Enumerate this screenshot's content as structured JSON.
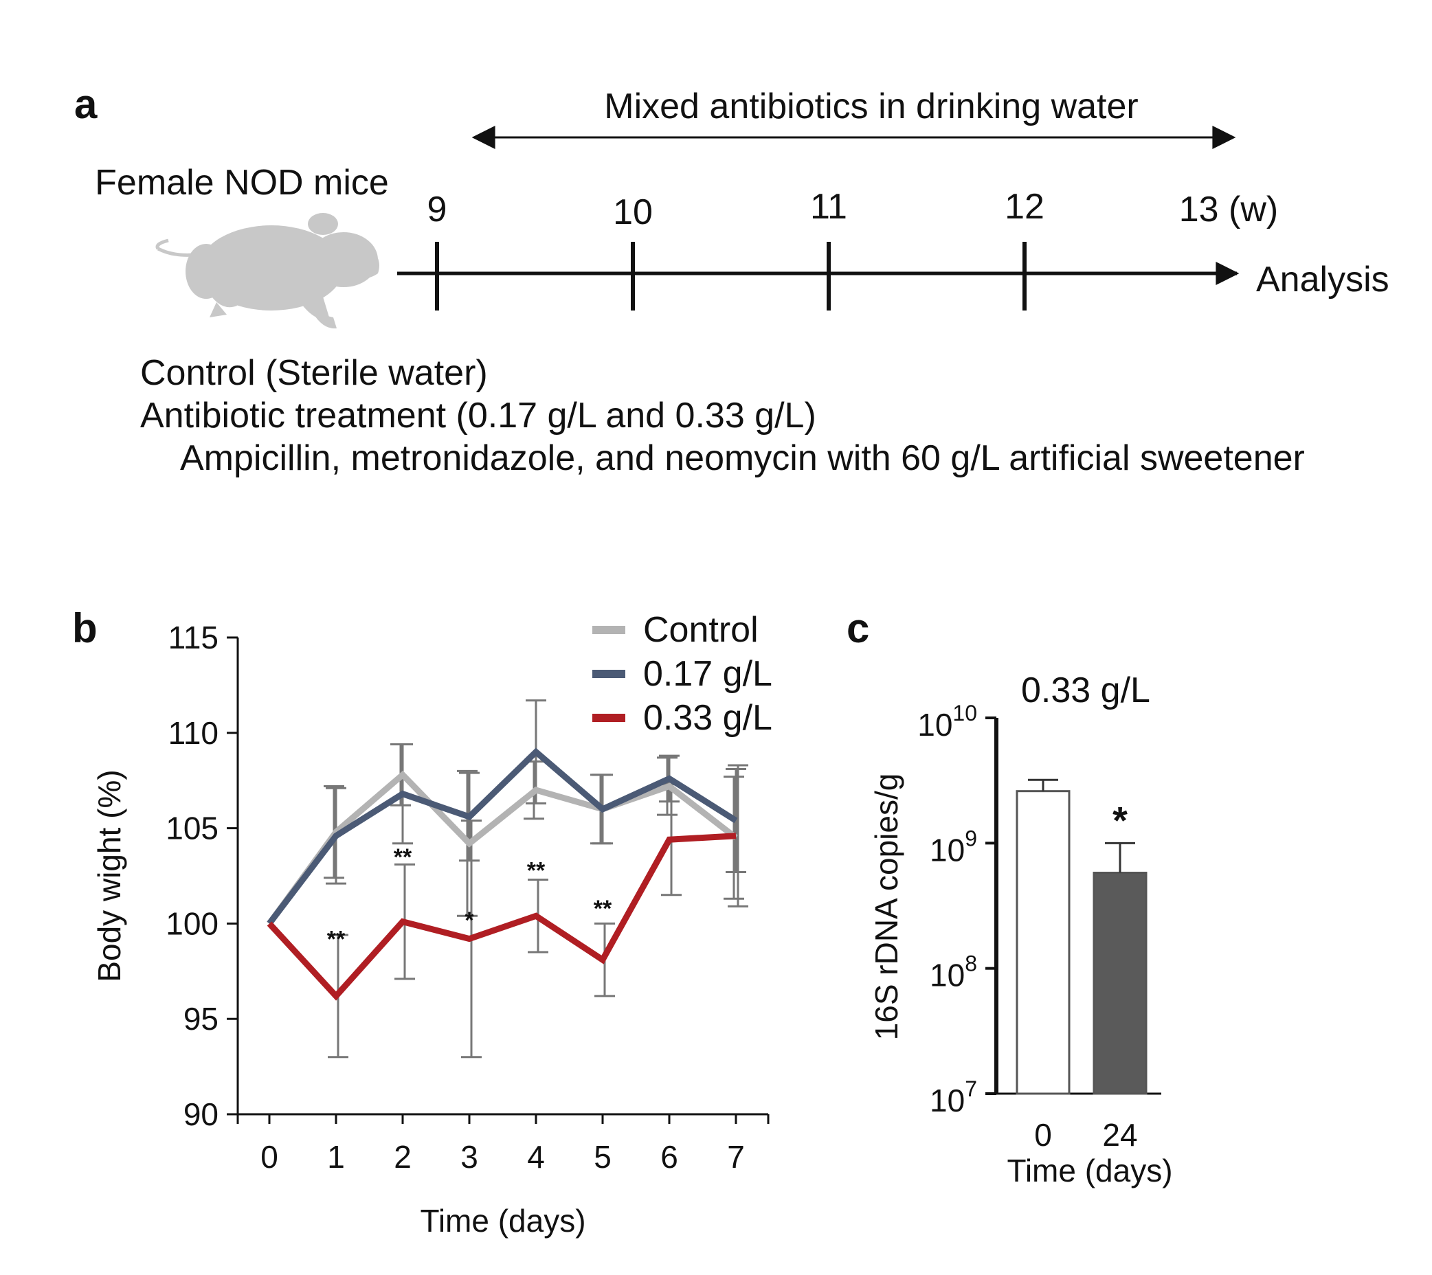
{
  "panel_a": {
    "letter": "a",
    "arrow_label": "Mixed antibiotics in drinking water",
    "subject": "Female NOD mice",
    "timeline_ticks": [
      "9",
      "10",
      "11",
      "12",
      "13 (w)"
    ],
    "end_label": "Analysis",
    "notes": [
      "Control (Sterile water)",
      "Antibiotic treatment (0.17 g/L and 0.33 g/L)",
      "Ampicillin, metronidazole, and neomycin with 60 g/L artificial sweetener"
    ],
    "mouse_icon": "mouse-silhouette-icon"
  },
  "chart_data": [
    {
      "panel": "b",
      "type": "line",
      "title": "",
      "xlabel": "Time (days)",
      "ylabel": "Body wight (%)",
      "x": [
        0,
        1,
        2,
        3,
        4,
        5,
        6,
        7
      ],
      "xticks": [
        "0",
        "1",
        "2",
        "3",
        "4",
        "5",
        "6",
        "7"
      ],
      "yticks": [
        "90",
        "95",
        "100",
        "105",
        "110",
        "115"
      ],
      "ylim": [
        90,
        115
      ],
      "grid": false,
      "legend_position": "top-right",
      "series": [
        {
          "name": "Control",
          "color": "#b3b3b3",
          "values": [
            100,
            104.8,
            107.8,
            104.2,
            107.0,
            106.0,
            107.2,
            104.5
          ],
          "err": [
            0,
            2.4,
            1.6,
            3.8,
            1.5,
            1.8,
            1.5,
            3.2
          ]
        },
        {
          "name": "0.17 g/L",
          "color": "#4b5a75",
          "values": [
            100,
            104.6,
            106.8,
            105.6,
            109.0,
            106.0,
            107.6,
            105.4
          ],
          "err": [
            0,
            2.5,
            2.6,
            2.3,
            2.7,
            1.8,
            1.2,
            2.7
          ]
        },
        {
          "name": "0.33 g/L",
          "color": "#b01e23",
          "values": [
            100,
            96.2,
            100.1,
            99.2,
            100.4,
            98.1,
            104.4,
            104.6
          ],
          "err": [
            0,
            3.2,
            3.0,
            6.2,
            1.9,
            1.9,
            2.9,
            3.7
          ]
        }
      ],
      "annotations": [
        {
          "x": 1,
          "y": 99.2,
          "text": "**"
        },
        {
          "x": 2,
          "y": 103.5,
          "text": "**"
        },
        {
          "x": 3,
          "y": 100.2,
          "text": "*"
        },
        {
          "x": 4,
          "y": 102.8,
          "text": "**"
        },
        {
          "x": 5,
          "y": 100.8,
          "text": "**"
        }
      ]
    },
    {
      "panel": "c",
      "type": "bar",
      "title": "0.33 g/L",
      "xlabel": "Time (days)",
      "ylabel": "16S rDNA copies/g",
      "categories": [
        "0",
        "24"
      ],
      "values": [
        2600000000.0,
        580000000.0
      ],
      "err_upper": [
        3200000000.0,
        1000000000.0
      ],
      "yscale": "log",
      "ylim": [
        10000000.0,
        10000000000.0
      ],
      "ytick_base": "10",
      "ytick_exponents": [
        "7",
        "8",
        "9",
        "10"
      ],
      "bar_colors": [
        "#ffffff",
        "#5a5a5a"
      ],
      "annotations": [
        {
          "category": "24",
          "text": "*"
        }
      ]
    }
  ]
}
